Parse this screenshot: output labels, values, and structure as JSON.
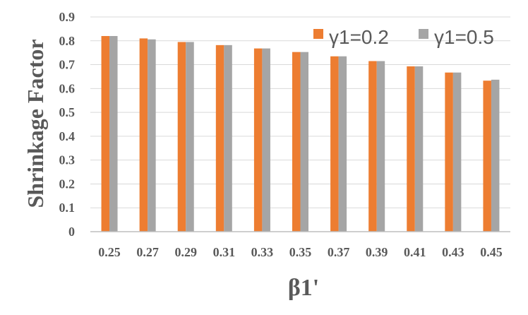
{
  "chart_data": {
    "type": "bar",
    "categories": [
      "0.25",
      "0.27",
      "0.29",
      "0.31",
      "0.33",
      "0.35",
      "0.37",
      "0.39",
      "0.41",
      "0.43",
      "0.45"
    ],
    "series": [
      {
        "name": "γ1=0.2",
        "color": "#ed7d31",
        "values": [
          0.82,
          0.81,
          0.795,
          0.782,
          0.768,
          0.753,
          0.735,
          0.715,
          0.693,
          0.667,
          0.633
        ]
      },
      {
        "name": "γ1=0.5",
        "color": "#a5a5a5",
        "values": [
          0.82,
          0.806,
          0.795,
          0.782,
          0.768,
          0.753,
          0.735,
          0.715,
          0.693,
          0.667,
          0.637
        ]
      }
    ],
    "xlabel": "β1'",
    "ylabel": "Shrinkage Factor",
    "ylim": [
      0,
      0.9
    ],
    "yticks": [
      "0",
      "0.1",
      "0.2",
      "0.3",
      "0.4",
      "0.5",
      "0.6",
      "0.7",
      "0.8",
      "0.9"
    ],
    "grid": true,
    "legend": "top-right"
  }
}
